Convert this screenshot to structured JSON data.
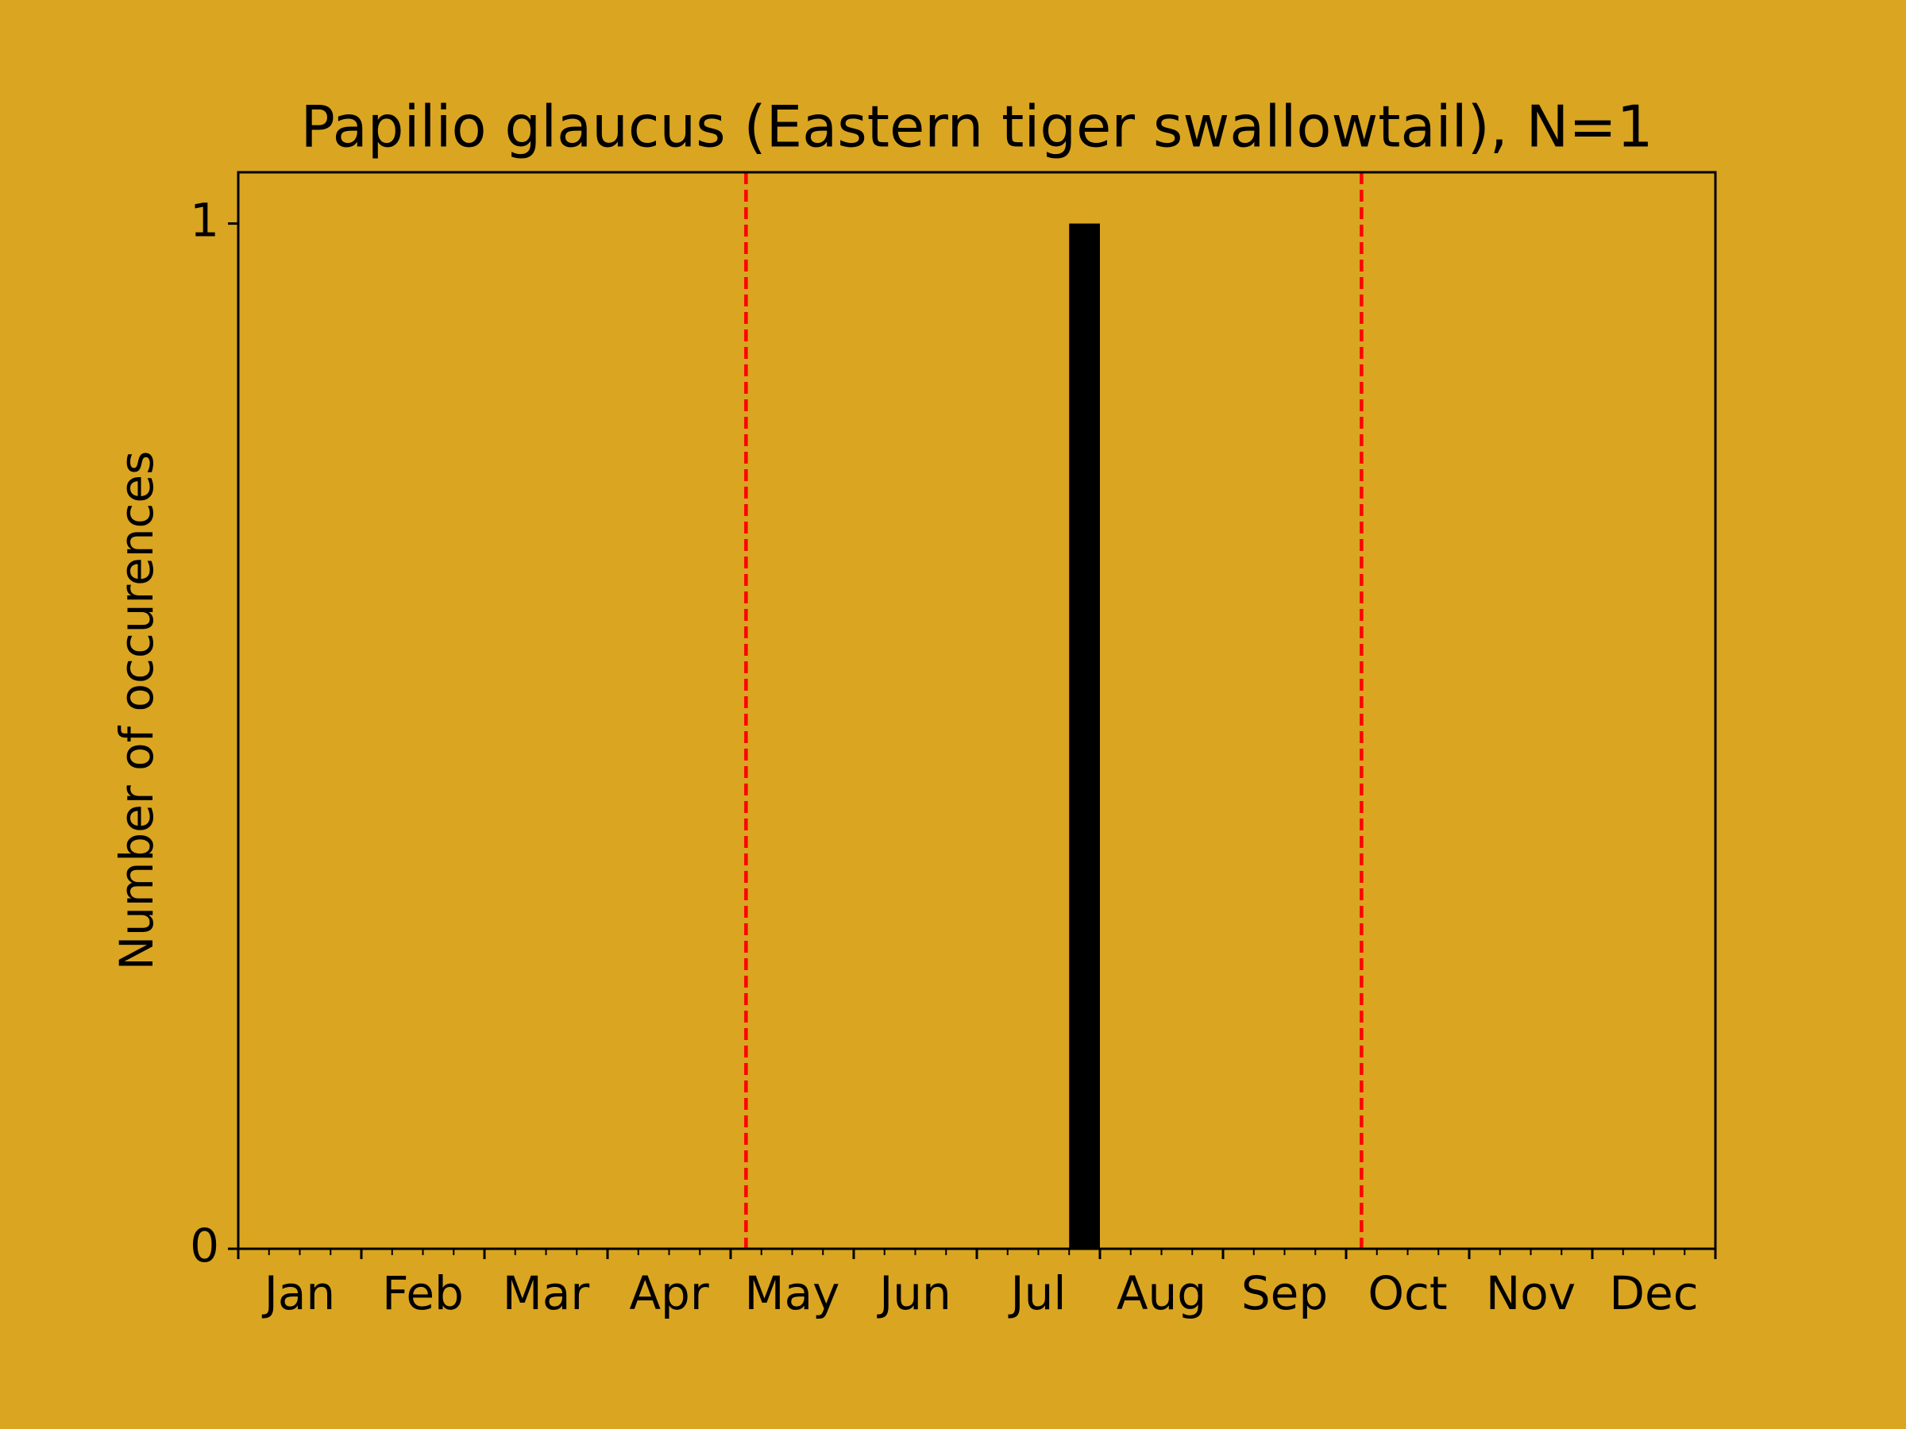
{
  "chart_data": {
    "type": "histogram",
    "title": "Papilio glaucus (Eastern tiger swallowtail), N=1",
    "y_label": "Number of occurences",
    "bins": [
      0,
      1,
      2,
      3,
      4,
      5,
      6,
      7,
      8,
      9,
      10,
      11,
      12,
      13,
      14,
      15,
      16,
      17,
      18,
      19,
      20,
      21,
      22,
      23,
      24,
      25,
      26,
      27,
      28,
      29,
      30,
      31,
      32,
      33,
      34,
      35,
      36,
      37,
      38,
      39,
      40,
      41,
      42,
      43,
      44,
      45,
      46,
      47,
      48
    ],
    "values": [
      0,
      0,
      0,
      0,
      0,
      0,
      0,
      0,
      0,
      0,
      0,
      0,
      0,
      0,
      0,
      0,
      0,
      0,
      0,
      0,
      0,
      0,
      0,
      0,
      0,
      0,
      0,
      1,
      0,
      0,
      0,
      0,
      0,
      0,
      0,
      0,
      0,
      0,
      0,
      0,
      0,
      0,
      0,
      0,
      0,
      0,
      0,
      0
    ],
    "color": "#000000",
    "categories": [
      "Jan",
      "Feb",
      "Mar",
      "Apr",
      "May",
      "Jun",
      "Jul",
      "Aug",
      "Sep",
      "Oct",
      "Nov",
      "Dec"
    ],
    "xlim": [
      0,
      48
    ],
    "xticks": [
      0,
      4,
      8,
      12,
      16,
      20,
      24,
      28,
      32,
      36,
      40,
      44,
      48
    ],
    "ylim": [
      0,
      1.05
    ],
    "yticks": [
      0,
      1
    ],
    "vlines": [
      16.5,
      36.5
    ],
    "vline_color": "#ff0000",
    "background": "#daa520"
  }
}
